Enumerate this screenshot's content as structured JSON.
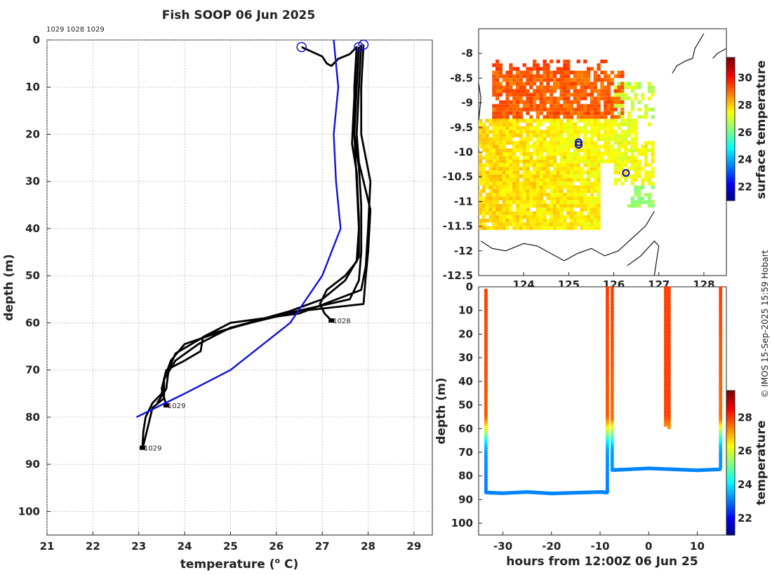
{
  "title": "Fish SOOP 06 Jun 2025",
  "stations_label": "1029 1028 1029",
  "credit": "© IMOS 15-Sep-2025 15:59 Hobart",
  "colors": {
    "profile": "#000000",
    "climatology": "#1010dd",
    "marker": "#1010cc"
  },
  "chart_data": [
    {
      "id": "profile",
      "type": "line",
      "xlabel": "temperature (",
      "xlabel_sup": "o",
      "xlabel_end": " C)",
      "ylabel": "depth (m)",
      "xlim": [
        21,
        29.4
      ],
      "ylim": [
        105,
        0
      ],
      "xticks": [
        "21",
        "22",
        "23",
        "24",
        "25",
        "26",
        "27",
        "28",
        "29"
      ],
      "yticks": [
        "0",
        "10",
        "20",
        "30",
        "40",
        "50",
        "60",
        "70",
        "80",
        "90",
        "100"
      ],
      "grid": true,
      "series": [
        {
          "name": "1029",
          "kind": "profile",
          "end_label": "1029",
          "points": [
            [
              27.85,
              1
            ],
            [
              27.8,
              10
            ],
            [
              27.75,
              20
            ],
            [
              27.8,
              26
            ],
            [
              27.9,
              30
            ],
            [
              28.05,
              36
            ],
            [
              28.0,
              45
            ],
            [
              27.95,
              50
            ],
            [
              27.9,
              56
            ],
            [
              26.5,
              57.5
            ],
            [
              25.0,
              61
            ],
            [
              24.3,
              64.5
            ],
            [
              23.8,
              68
            ],
            [
              23.55,
              72
            ],
            [
              23.5,
              75
            ],
            [
              23.3,
              77
            ],
            [
              23.15,
              80
            ],
            [
              23.1,
              83
            ],
            [
              23.08,
              86.5
            ]
          ]
        },
        {
          "name": "1028",
          "kind": "profile",
          "end_label": "1028",
          "points": [
            [
              26.55,
              1.5
            ],
            [
              27.0,
              3.5
            ],
            [
              27.1,
              5
            ],
            [
              27.2,
              5.5
            ],
            [
              27.35,
              4
            ],
            [
              27.6,
              3
            ],
            [
              27.75,
              1.5
            ],
            [
              27.7,
              10
            ],
            [
              27.7,
              20
            ],
            [
              27.75,
              30
            ],
            [
              27.8,
              40
            ],
            [
              27.75,
              47
            ],
            [
              27.5,
              50
            ],
            [
              27.1,
              53
            ],
            [
              26.95,
              56
            ],
            [
              27.05,
              58
            ],
            [
              27.2,
              59.5
            ]
          ]
        },
        {
          "name": "1029",
          "kind": "profile",
          "end_label": "1029",
          "points": [
            [
              27.9,
              1
            ],
            [
              27.85,
              10
            ],
            [
              27.85,
              20
            ],
            [
              27.95,
              25
            ],
            [
              28.05,
              30
            ],
            [
              28.0,
              40
            ],
            [
              27.95,
              48
            ],
            [
              27.85,
              53
            ],
            [
              26.5,
              58
            ],
            [
              25.0,
              60
            ],
            [
              24.4,
              63
            ],
            [
              24.35,
              66
            ],
            [
              24.0,
              68
            ],
            [
              23.6,
              70
            ],
            [
              23.5,
              74
            ],
            [
              23.6,
              77.5
            ]
          ]
        },
        {
          "name": "1029",
          "kind": "profile",
          "end_label": "",
          "points": [
            [
              27.75,
              2
            ],
            [
              27.7,
              12
            ],
            [
              27.65,
              22
            ],
            [
              27.75,
              28
            ],
            [
              27.8,
              38
            ],
            [
              27.8,
              46
            ],
            [
              27.5,
              51
            ],
            [
              27.0,
              55
            ],
            [
              26.3,
              57.5
            ],
            [
              25.2,
              60.5
            ],
            [
              24.0,
              64.5
            ],
            [
              23.7,
              68
            ],
            [
              23.55,
              72
            ],
            [
              23.55,
              76
            ],
            [
              23.3,
              78
            ],
            [
              23.2,
              82
            ],
            [
              23.1,
              86
            ]
          ]
        },
        {
          "name": "1028",
          "kind": "profile",
          "end_label": "",
          "points": [
            [
              27.8,
              1.5
            ],
            [
              27.75,
              10
            ],
            [
              27.7,
              20
            ],
            [
              27.8,
              27
            ],
            [
              27.85,
              35
            ],
            [
              27.85,
              45
            ],
            [
              27.8,
              51
            ],
            [
              27.6,
              55
            ],
            [
              26.0,
              58.5
            ],
            [
              24.5,
              62.5
            ],
            [
              23.8,
              66.5
            ],
            [
              23.65,
              70
            ],
            [
              23.6,
              74
            ],
            [
              23.4,
              77
            ]
          ]
        },
        {
          "name": "climatology",
          "kind": "climatology",
          "end_label": "",
          "points": [
            [
              27.25,
              0
            ],
            [
              27.35,
              10
            ],
            [
              27.25,
              20
            ],
            [
              27.3,
              30
            ],
            [
              27.4,
              40
            ],
            [
              27.0,
              50
            ],
            [
              26.3,
              60
            ],
            [
              25.0,
              70
            ],
            [
              24.0,
              75
            ],
            [
              22.95,
              80
            ]
          ]
        }
      ],
      "markers": [
        [
          26.55,
          1.5
        ],
        [
          27.8,
          1.5
        ],
        [
          27.9,
          1
        ]
      ]
    },
    {
      "id": "map",
      "type": "heatmap",
      "xlim": [
        123.0,
        128.5
      ],
      "ylim": [
        -12.5,
        -7.5
      ],
      "xticks": [
        "124",
        "125",
        "126",
        "127",
        "128"
      ],
      "yticks": [
        "-8",
        "-8.5",
        "-9",
        "-9.5",
        "-10",
        "-10.5",
        "-11",
        "-11.5",
        "-12",
        "-12.5"
      ],
      "colorbar_label": "surface temperature",
      "colorbar_ticks": [
        "22",
        "24",
        "26",
        "28",
        "30"
      ],
      "colorbar_range": [
        21,
        31.5
      ],
      "stations": [
        [
          125.22,
          -9.8
        ],
        [
          125.22,
          -9.85
        ],
        [
          126.27,
          -10.42
        ]
      ]
    },
    {
      "id": "section",
      "type": "scatter",
      "xlabel": "hours from 12:00Z 06 Jun 25",
      "ylabel": "depth (m)",
      "xlim": [
        -35,
        16
      ],
      "ylim": [
        105,
        0
      ],
      "xticks": [
        "-30",
        "-20",
        "-10",
        "0",
        "10"
      ],
      "yticks": [
        "0",
        "10",
        "20",
        "30",
        "40",
        "50",
        "60",
        "70",
        "80",
        "90",
        "100"
      ],
      "colorbar_label": "temperature",
      "colorbar_ticks": [
        "22",
        "24",
        "26",
        "28"
      ],
      "colorbar_range": [
        21,
        29.6
      ],
      "casts": [
        {
          "hour": -33.5,
          "start": 1.5,
          "max_depth": 87.0,
          "dz": 1.0,
          "tempProfile": 0
        },
        {
          "hour": -8.5,
          "start": 0.5,
          "max_depth": 87.0,
          "dz": 1.0,
          "tempProfile": 0
        },
        {
          "hour": -7.5,
          "start": 0.5,
          "max_depth": 77.5,
          "dz": 1.0,
          "tempProfile": 1
        },
        {
          "hour": 3.5,
          "start": 0.5,
          "max_depth": 59.0,
          "dz": 1.0,
          "tempProfile": 2
        },
        {
          "hour": 4.2,
          "start": 0.5,
          "max_depth": 59.5,
          "dz": 1.0,
          "tempProfile": 2
        },
        {
          "hour": 14.8,
          "start": 0.5,
          "max_depth": 77.0,
          "dz": 1.0,
          "tempProfile": 1
        }
      ],
      "temp_profiles": [
        [
          [
            0,
            28.0
          ],
          [
            55,
            27.8
          ],
          [
            58,
            27.0
          ],
          [
            62,
            25.5
          ],
          [
            66,
            24.0
          ],
          [
            70,
            23.4
          ],
          [
            80,
            23.2
          ],
          [
            90,
            23.1
          ]
        ],
        [
          [
            0,
            28.0
          ],
          [
            56,
            27.6
          ],
          [
            59,
            26.5
          ],
          [
            63,
            25.0
          ],
          [
            67,
            23.8
          ],
          [
            70,
            23.4
          ],
          [
            80,
            23.3
          ]
        ],
        [
          [
            0,
            28.0
          ],
          [
            55,
            28.0
          ],
          [
            58,
            27.5
          ],
          [
            60,
            27.2
          ]
        ]
      ],
      "bottom_track": {
        "hours": [
          -33.5,
          -30,
          -25,
          -20,
          -15,
          -10,
          -8.5
        ],
        "depths": [
          87,
          87.3,
          86.8,
          87.4,
          87.1,
          86.8,
          87
        ]
      },
      "bottom_track2": {
        "hours": [
          -7.5,
          -5,
          0,
          5,
          10,
          14.8
        ],
        "depths": [
          77.5,
          77.3,
          76.8,
          77.2,
          77.6,
          77.2
        ]
      },
      "bottom_temp": 23.2
    }
  ]
}
